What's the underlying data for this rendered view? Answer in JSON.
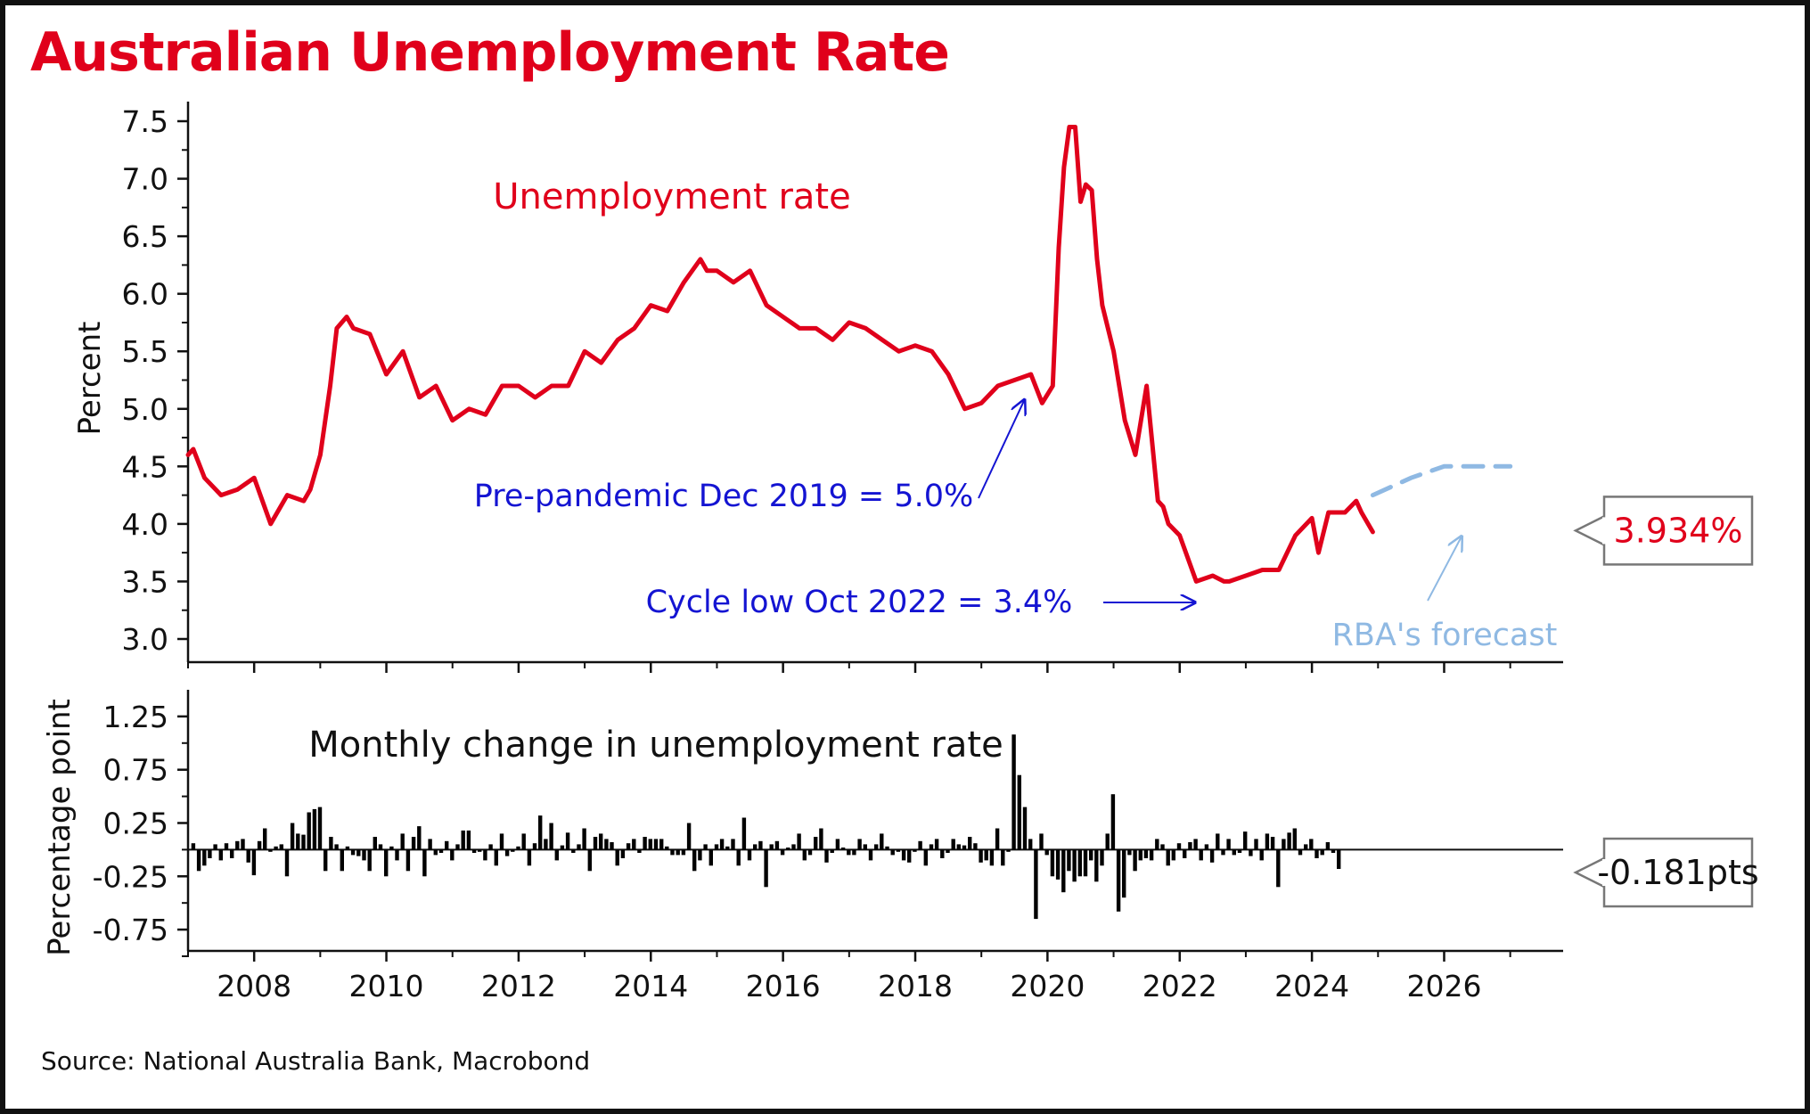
{
  "title": "Australian Unemployment Rate",
  "source": "Source: National Australia Bank, Macrobond",
  "colors": {
    "title": "#e0001b",
    "rate_line": "#e0001b",
    "forecast": "#8fb9e3",
    "annotation": "#1414d2",
    "bars": "#000000",
    "axis": "#111111"
  },
  "chart_data": [
    {
      "type": "line",
      "title": "Unemployment rate",
      "ylabel": "Percent",
      "ylim": [
        3.0,
        7.5
      ],
      "yticks": [
        "7.5",
        "7.0",
        "6.5",
        "6.0",
        "5.5",
        "5.0",
        "4.5",
        "4.0",
        "3.5",
        "3.0"
      ],
      "xlim": [
        2007.0,
        2027.8
      ],
      "xticks": [
        "2008",
        "2010",
        "2012",
        "2014",
        "2016",
        "2018",
        "2020",
        "2022",
        "2024",
        "2026"
      ],
      "series": [
        {
          "style": "solid",
          "x": [
            2007.0,
            2007.08,
            2007.25,
            2007.5,
            2007.75,
            2008.0,
            2008.25,
            2008.5,
            2008.75,
            2008.85,
            2009.0,
            2009.15,
            2009.25,
            2009.4,
            2009.5,
            2009.75,
            2010.0,
            2010.25,
            2010.5,
            2010.75,
            2011.0,
            2011.25,
            2011.5,
            2011.75,
            2012.0,
            2012.25,
            2012.5,
            2012.75,
            2013.0,
            2013.25,
            2013.5,
            2013.75,
            2014.0,
            2014.25,
            2014.5,
            2014.75,
            2014.85,
            2015.0,
            2015.25,
            2015.5,
            2015.75,
            2016.0,
            2016.25,
            2016.5,
            2016.75,
            2017.0,
            2017.25,
            2017.5,
            2017.75,
            2018.0,
            2018.25,
            2018.5,
            2018.75,
            2019.0,
            2019.25,
            2019.5,
            2019.75,
            2019.92,
            2020.08,
            2020.17,
            2020.25,
            2020.33,
            2020.42,
            2020.5,
            2020.58,
            2020.67,
            2020.75,
            2020.83,
            2021.0,
            2021.17,
            2021.33,
            2021.5,
            2021.67,
            2021.75,
            2021.83,
            2022.0,
            2022.25,
            2022.5,
            2022.67,
            2022.75,
            2023.0,
            2023.25,
            2023.5,
            2023.75,
            2024.0,
            2024.1,
            2024.25,
            2024.5,
            2024.67,
            2024.75,
            2024.92
          ],
          "values": [
            4.6,
            4.65,
            4.4,
            4.25,
            4.3,
            4.4,
            4.0,
            4.25,
            4.2,
            4.3,
            4.6,
            5.2,
            5.7,
            5.8,
            5.7,
            5.65,
            5.3,
            5.5,
            5.1,
            5.2,
            4.9,
            5.0,
            4.95,
            5.2,
            5.2,
            5.1,
            5.2,
            5.2,
            5.5,
            5.4,
            5.6,
            5.7,
            5.9,
            5.85,
            6.1,
            6.3,
            6.2,
            6.2,
            6.1,
            6.2,
            5.9,
            5.8,
            5.7,
            5.7,
            5.6,
            5.75,
            5.7,
            5.6,
            5.5,
            5.55,
            5.5,
            5.3,
            5.0,
            5.05,
            5.2,
            5.25,
            5.3,
            5.05,
            5.2,
            6.4,
            7.1,
            7.45,
            7.45,
            6.8,
            6.95,
            6.9,
            6.3,
            5.9,
            5.5,
            4.9,
            4.6,
            5.2,
            4.2,
            4.15,
            4.0,
            3.9,
            3.5,
            3.55,
            3.5,
            3.5,
            3.55,
            3.6,
            3.6,
            3.9,
            4.05,
            3.75,
            4.1,
            4.1,
            4.2,
            4.1,
            3.93
          ]
        },
        {
          "name": "RBA's forecast",
          "style": "dashed",
          "x": [
            2024.92,
            2025.5,
            2026.0,
            2026.5,
            2027.0
          ],
          "values": [
            4.25,
            4.4,
            4.5,
            4.5,
            4.5
          ]
        }
      ],
      "annotations": [
        {
          "text": "Pre-pandemic Dec 2019 = 5.0%",
          "x": 2019.92,
          "y": 5.0
        },
        {
          "text": "Cycle low Oct 2022 = 3.4%",
          "x": 2022.42,
          "y": 3.45
        },
        {
          "text": "RBA's forecast"
        }
      ],
      "last_value_label": "3.934%"
    },
    {
      "type": "bar",
      "title": "Monthly change in unemployment rate",
      "ylabel": "Percentage point",
      "ylim": [
        -0.95,
        1.5
      ],
      "yticks": [
        "1.25",
        "0.75",
        "0.25",
        "-0.25",
        "-0.75"
      ],
      "xlim": [
        2007.0,
        2027.8
      ],
      "x_start": 2007.08,
      "x_step": 0.0833,
      "values": [
        0.06,
        -0.2,
        -0.15,
        -0.08,
        0.05,
        -0.1,
        0.06,
        -0.08,
        0.08,
        0.1,
        -0.12,
        -0.24,
        0.08,
        0.2,
        -0.02,
        0.03,
        0.05,
        -0.25,
        0.25,
        0.15,
        0.14,
        0.35,
        0.38,
        0.4,
        -0.2,
        0.12,
        0.05,
        -0.2,
        0.03,
        -0.05,
        -0.06,
        -0.1,
        -0.2,
        0.12,
        0.05,
        -0.25,
        0.03,
        -0.1,
        0.15,
        -0.2,
        0.12,
        0.22,
        -0.25,
        0.1,
        -0.05,
        -0.03,
        0.08,
        -0.1,
        0.05,
        0.18,
        0.18,
        -0.03,
        -0.02,
        -0.1,
        0.05,
        -0.15,
        0.15,
        -0.06,
        -0.02,
        0.03,
        0.15,
        -0.15,
        0.06,
        0.32,
        0.1,
        0.25,
        -0.1,
        0.04,
        0.16,
        -0.03,
        0.05,
        0.2,
        -0.2,
        0.12,
        0.15,
        0.1,
        0.07,
        -0.15,
        -0.08,
        0.06,
        0.1,
        -0.03,
        0.12,
        0.1,
        0.1,
        0.1,
        0.03,
        -0.05,
        -0.05,
        -0.05,
        0.25,
        -0.2,
        -0.1,
        0.05,
        -0.15,
        0.05,
        0.1,
        0.03,
        0.1,
        -0.15,
        0.3,
        -0.1,
        0.05,
        0.08,
        -0.35,
        0.05,
        0.08,
        -0.05,
        0.02,
        0.05,
        0.15,
        -0.1,
        -0.05,
        0.12,
        0.2,
        -0.12,
        -0.03,
        0.1,
        0.02,
        -0.05,
        -0.05,
        0.1,
        0.05,
        -0.1,
        0.05,
        0.15,
        0.03,
        -0.05,
        -0.02,
        -0.1,
        -0.12,
        -0.02,
        0.08,
        -0.15,
        0.05,
        0.1,
        -0.08,
        -0.03,
        0.1,
        0.05,
        0.04,
        0.12,
        0.06,
        -0.12,
        -0.1,
        -0.15,
        0.2,
        -0.15,
        -0.02,
        1.08,
        0.7,
        0.4,
        0.1,
        -0.65,
        0.15,
        -0.05,
        -0.25,
        -0.28,
        -0.4,
        -0.2,
        -0.3,
        -0.25,
        -0.25,
        -0.1,
        -0.3,
        -0.15,
        0.15,
        0.52,
        -0.58,
        -0.45,
        -0.05,
        -0.2,
        -0.1,
        -0.08,
        -0.1,
        0.1,
        0.05,
        -0.15,
        -0.1,
        0.06,
        -0.08,
        0.07,
        0.1,
        -0.1,
        0.05,
        -0.12,
        0.15,
        -0.05,
        0.1,
        -0.05,
        -0.03,
        0.17,
        -0.06,
        0.1,
        -0.1,
        0.15,
        0.12,
        -0.35,
        0.1,
        0.16,
        0.2,
        -0.05,
        0.05,
        0.1,
        -0.08,
        -0.05,
        0.07,
        -0.03,
        -0.181
      ],
      "last_value_label": "-0.181pts"
    }
  ]
}
